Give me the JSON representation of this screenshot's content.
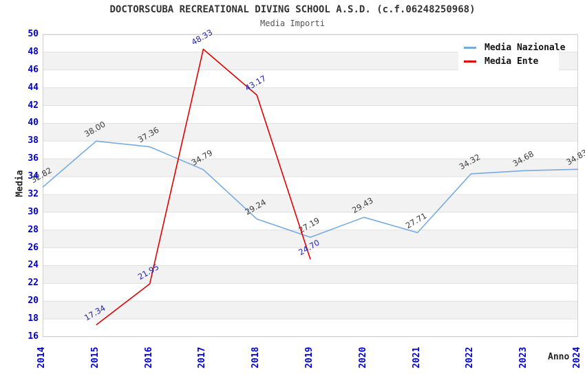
{
  "chart_data": {
    "type": "line",
    "title": "DOCTORSCUBA RECREATIONAL DIVING SCHOOL A.S.D. (c.f.06248250968)",
    "subtitle": "Media Importi",
    "xlabel": "Anno",
    "ylabel": "Media",
    "categories": [
      "2014",
      "2015",
      "2016",
      "2017",
      "2018",
      "2019",
      "2020",
      "2021",
      "2022",
      "2023",
      "2024"
    ],
    "y_ticks": [
      50,
      48,
      46,
      44,
      42,
      40,
      38,
      36,
      34,
      32,
      30,
      28,
      26,
      24,
      22,
      20,
      18,
      16
    ],
    "ylim": [
      16,
      50
    ],
    "grid": "horizontal-bands-alternating",
    "legend_position": "top-right",
    "colors": {
      "tick_label": "#0000cc",
      "band_gray": "#f2f2f2",
      "gridline": "#e0e0e0",
      "plot_border": "#d0d0d0",
      "title_text": "#333333"
    },
    "series": [
      {
        "name": "Media Nazionale",
        "color": "#76abdf",
        "label_color": "#3a3a3a",
        "values": [
          32.82,
          38.0,
          37.36,
          34.79,
          29.24,
          27.19,
          29.43,
          27.71,
          34.32,
          34.68,
          34.83
        ]
      },
      {
        "name": "Media Ente",
        "color": "#e00000",
        "label_color": "#2222aa",
        "values": [
          null,
          17.34,
          21.95,
          48.33,
          43.17,
          24.7,
          null,
          null,
          null,
          null,
          null
        ]
      }
    ]
  }
}
